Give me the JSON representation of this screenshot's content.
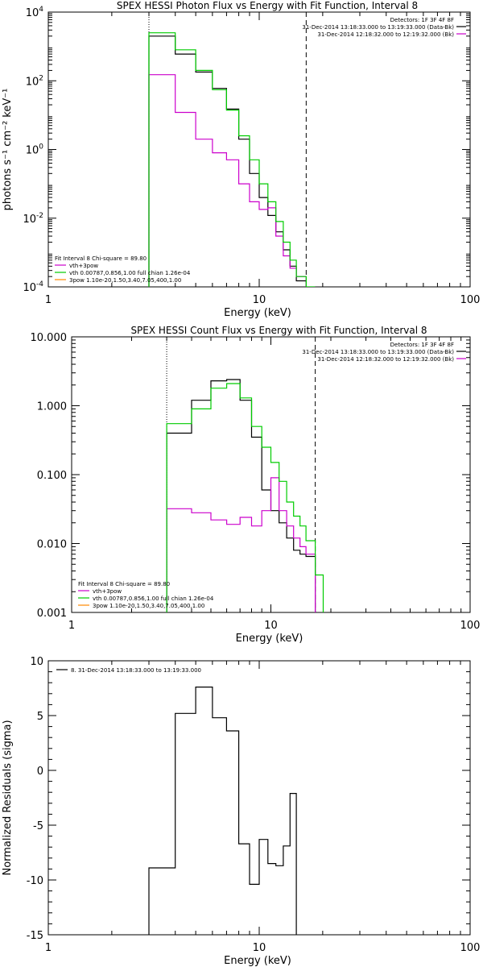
{
  "colors": {
    "data": "#000000",
    "total": "#00cc00",
    "component1": "#cc00cc",
    "component2": "#ff8800",
    "range_line": "#00cc00"
  },
  "chart_data": [
    {
      "type": "line",
      "title": "SPEX HESSI Photon Flux vs Energy with Fit Function, Interval 8",
      "xlabel": "Energy (keV)",
      "ylabel": "photons s⁻¹ cm⁻² keV⁻¹",
      "xscale": "log",
      "yscale": "log",
      "xlim": [
        1,
        100
      ],
      "ylim": [
        0.0001,
        10000
      ],
      "xticks": [
        {
          "v": 1,
          "label": "1"
        },
        {
          "v": 10,
          "label": "10"
        },
        {
          "v": 100,
          "label": "100"
        }
      ],
      "yticks": [
        {
          "v": 0.0001,
          "base": "10",
          "exp": "-4"
        },
        {
          "v": 0.01,
          "base": "10",
          "exp": "-2"
        },
        {
          "v": 1,
          "base": "10",
          "exp": "0"
        },
        {
          "v": 100,
          "base": "10",
          "exp": "2"
        },
        {
          "v": 10000,
          "base": "10",
          "exp": "4"
        }
      ],
      "vlines": [
        {
          "x": 3.0,
          "style": "dotted"
        },
        {
          "x": 16.7,
          "style": "dashed"
        }
      ],
      "edges": [
        3.0,
        4.0,
        5.0,
        6.0,
        7.0,
        8.0,
        9.0,
        10.0,
        11.0,
        12.0,
        13.0,
        14.0,
        15.0,
        16.7,
        18.3
      ],
      "series": [
        {
          "key": "data",
          "values": [
            2000,
            600,
            180,
            60,
            15,
            2.0,
            0.2,
            0.04,
            0.012,
            0.004,
            0.0012,
            0.0004,
            0.00015,
            null
          ]
        },
        {
          "key": "component1",
          "values": [
            150,
            12,
            2.0,
            0.8,
            0.5,
            0.1,
            0.03,
            0.018,
            0.02,
            0.003,
            0.0008,
            0.00035,
            0.0002,
            null
          ]
        },
        {
          "key": "total",
          "values": [
            2500,
            800,
            200,
            55,
            14,
            2.5,
            0.5,
            0.1,
            0.03,
            0.008,
            0.002,
            0.0006,
            0.0002,
            0.0001
          ]
        }
      ],
      "legend": {
        "position": "bottom-left",
        "header": "Fit Interval 8   Chi-square = 89.80",
        "entries": [
          {
            "key": "component1",
            "label": "vth+3pow"
          },
          {
            "key": "total",
            "label": "vth 0.00787,0.856,1.00  full chian 1.26e-04"
          },
          {
            "key": "component2",
            "label": "3pow 1.10e-20,1.50,3.40,7.05,400,1.00"
          }
        ]
      },
      "legend2": {
        "position": "top-right",
        "header": "Detectors: 1F 3F 4F 8F",
        "entries": [
          {
            "key": "data",
            "label": "31-Dec-2014 13:18:33.000 to 13:19:33.000 (Data-Bk)"
          },
          {
            "key": "component1",
            "label": "31-Dec-2014 12:18:32.000 to 12:19:32.000 (Bk)"
          }
        ]
      }
    },
    {
      "type": "line",
      "title": "SPEX HESSI Count Flux vs Energy with Fit Function, Interval 8",
      "xlabel": "Energy (keV)",
      "ylabel": "",
      "xscale": "log",
      "yscale": "log",
      "xlim": [
        1,
        100
      ],
      "ylim": [
        0.001,
        10
      ],
      "xticks": [
        {
          "v": 1,
          "label": "1"
        },
        {
          "v": 10,
          "label": "10"
        },
        {
          "v": 100,
          "label": "100"
        }
      ],
      "yticks": [
        {
          "v": 0.001,
          "label": "0.001"
        },
        {
          "v": 0.01,
          "label": "0.010"
        },
        {
          "v": 0.1,
          "label": "0.100"
        },
        {
          "v": 1,
          "label": "1.000"
        },
        {
          "v": 10,
          "label": "10.000"
        }
      ],
      "vlines": [
        {
          "x": 3.0,
          "style": "dotted"
        },
        {
          "x": 16.7,
          "style": "dashed"
        }
      ],
      "edges": [
        3.0,
        4.0,
        5.0,
        6.0,
        7.0,
        8.0,
        9.0,
        10.0,
        11.0,
        12.0,
        13.0,
        14.0,
        15.0,
        16.7,
        18.3
      ],
      "series": [
        {
          "key": "data",
          "values": [
            0.4,
            1.2,
            2.3,
            2.4,
            1.2,
            0.35,
            0.06,
            0.03,
            0.02,
            0.012,
            0.008,
            0.007,
            0.0065,
            null
          ]
        },
        {
          "key": "component1",
          "values": [
            0.032,
            0.028,
            0.022,
            0.019,
            0.024,
            0.018,
            0.03,
            0.09,
            0.03,
            0.018,
            0.012,
            0.009,
            0.007,
            null
          ]
        },
        {
          "key": "total",
          "values": [
            0.55,
            0.9,
            1.8,
            2.1,
            1.3,
            0.5,
            0.25,
            0.15,
            0.08,
            0.04,
            0.025,
            0.018,
            0.011,
            0.0035
          ]
        }
      ],
      "legend": {
        "position": "bottom-left",
        "header": "Fit Interval 8   Chi-square = 89.80",
        "entries": [
          {
            "key": "component1",
            "label": "vth+3pow"
          },
          {
            "key": "total",
            "label": "vth 0.00787,0.856,1.00  full chian 1.26e-04"
          },
          {
            "key": "component2",
            "label": "3pow 1.10e-20,1.50,3.40,7.05,400,1.00"
          }
        ]
      },
      "legend2": {
        "position": "top-right",
        "header": "Detectors: 1F 3F 4F 8F",
        "entries": [
          {
            "key": "data",
            "label": "31-Dec-2014 13:18:33.000 to 13:19:33.000 (Data-Bk)"
          },
          {
            "key": "component1",
            "label": "31-Dec-2014 12:18:32.000 to 12:19:32.000 (Bk)"
          }
        ]
      }
    },
    {
      "type": "line",
      "title": "",
      "xlabel": "Energy (keV)",
      "ylabel": "Normalized Residuals (sigma)",
      "xscale": "log",
      "yscale": "linear",
      "xlim": [
        1,
        100
      ],
      "ylim": [
        -15,
        10
      ],
      "xticks": [
        {
          "v": 1,
          "label": "1"
        },
        {
          "v": 10,
          "label": "10"
        },
        {
          "v": 100,
          "label": "100"
        }
      ],
      "yticks": [
        {
          "v": -15,
          "label": "-15"
        },
        {
          "v": -10,
          "label": "-10"
        },
        {
          "v": -5,
          "label": "-5"
        },
        {
          "v": 0,
          "label": "0"
        },
        {
          "v": 5,
          "label": "5"
        },
        {
          "v": 10,
          "label": "10"
        }
      ],
      "vlines": [],
      "edges": [
        3.0,
        4.0,
        5.0,
        6.0,
        7.0,
        8.0,
        9.0,
        10.0,
        11.0,
        12.0,
        13.0,
        14.0,
        15.0,
        16.7
      ],
      "series": [
        {
          "key": "data",
          "values": [
            -8.9,
            5.2,
            7.6,
            4.8,
            3.6,
            -6.7,
            -10.4,
            -6.3,
            -8.5,
            -8.7,
            -6.9,
            -2.1,
            null
          ]
        }
      ],
      "legend": {
        "position": "top-left",
        "header": "",
        "entries": [
          {
            "key": "data",
            "label": "8. 31-Dec-2014 13:18:33.000 to 13:19:33.000"
          }
        ]
      }
    }
  ]
}
